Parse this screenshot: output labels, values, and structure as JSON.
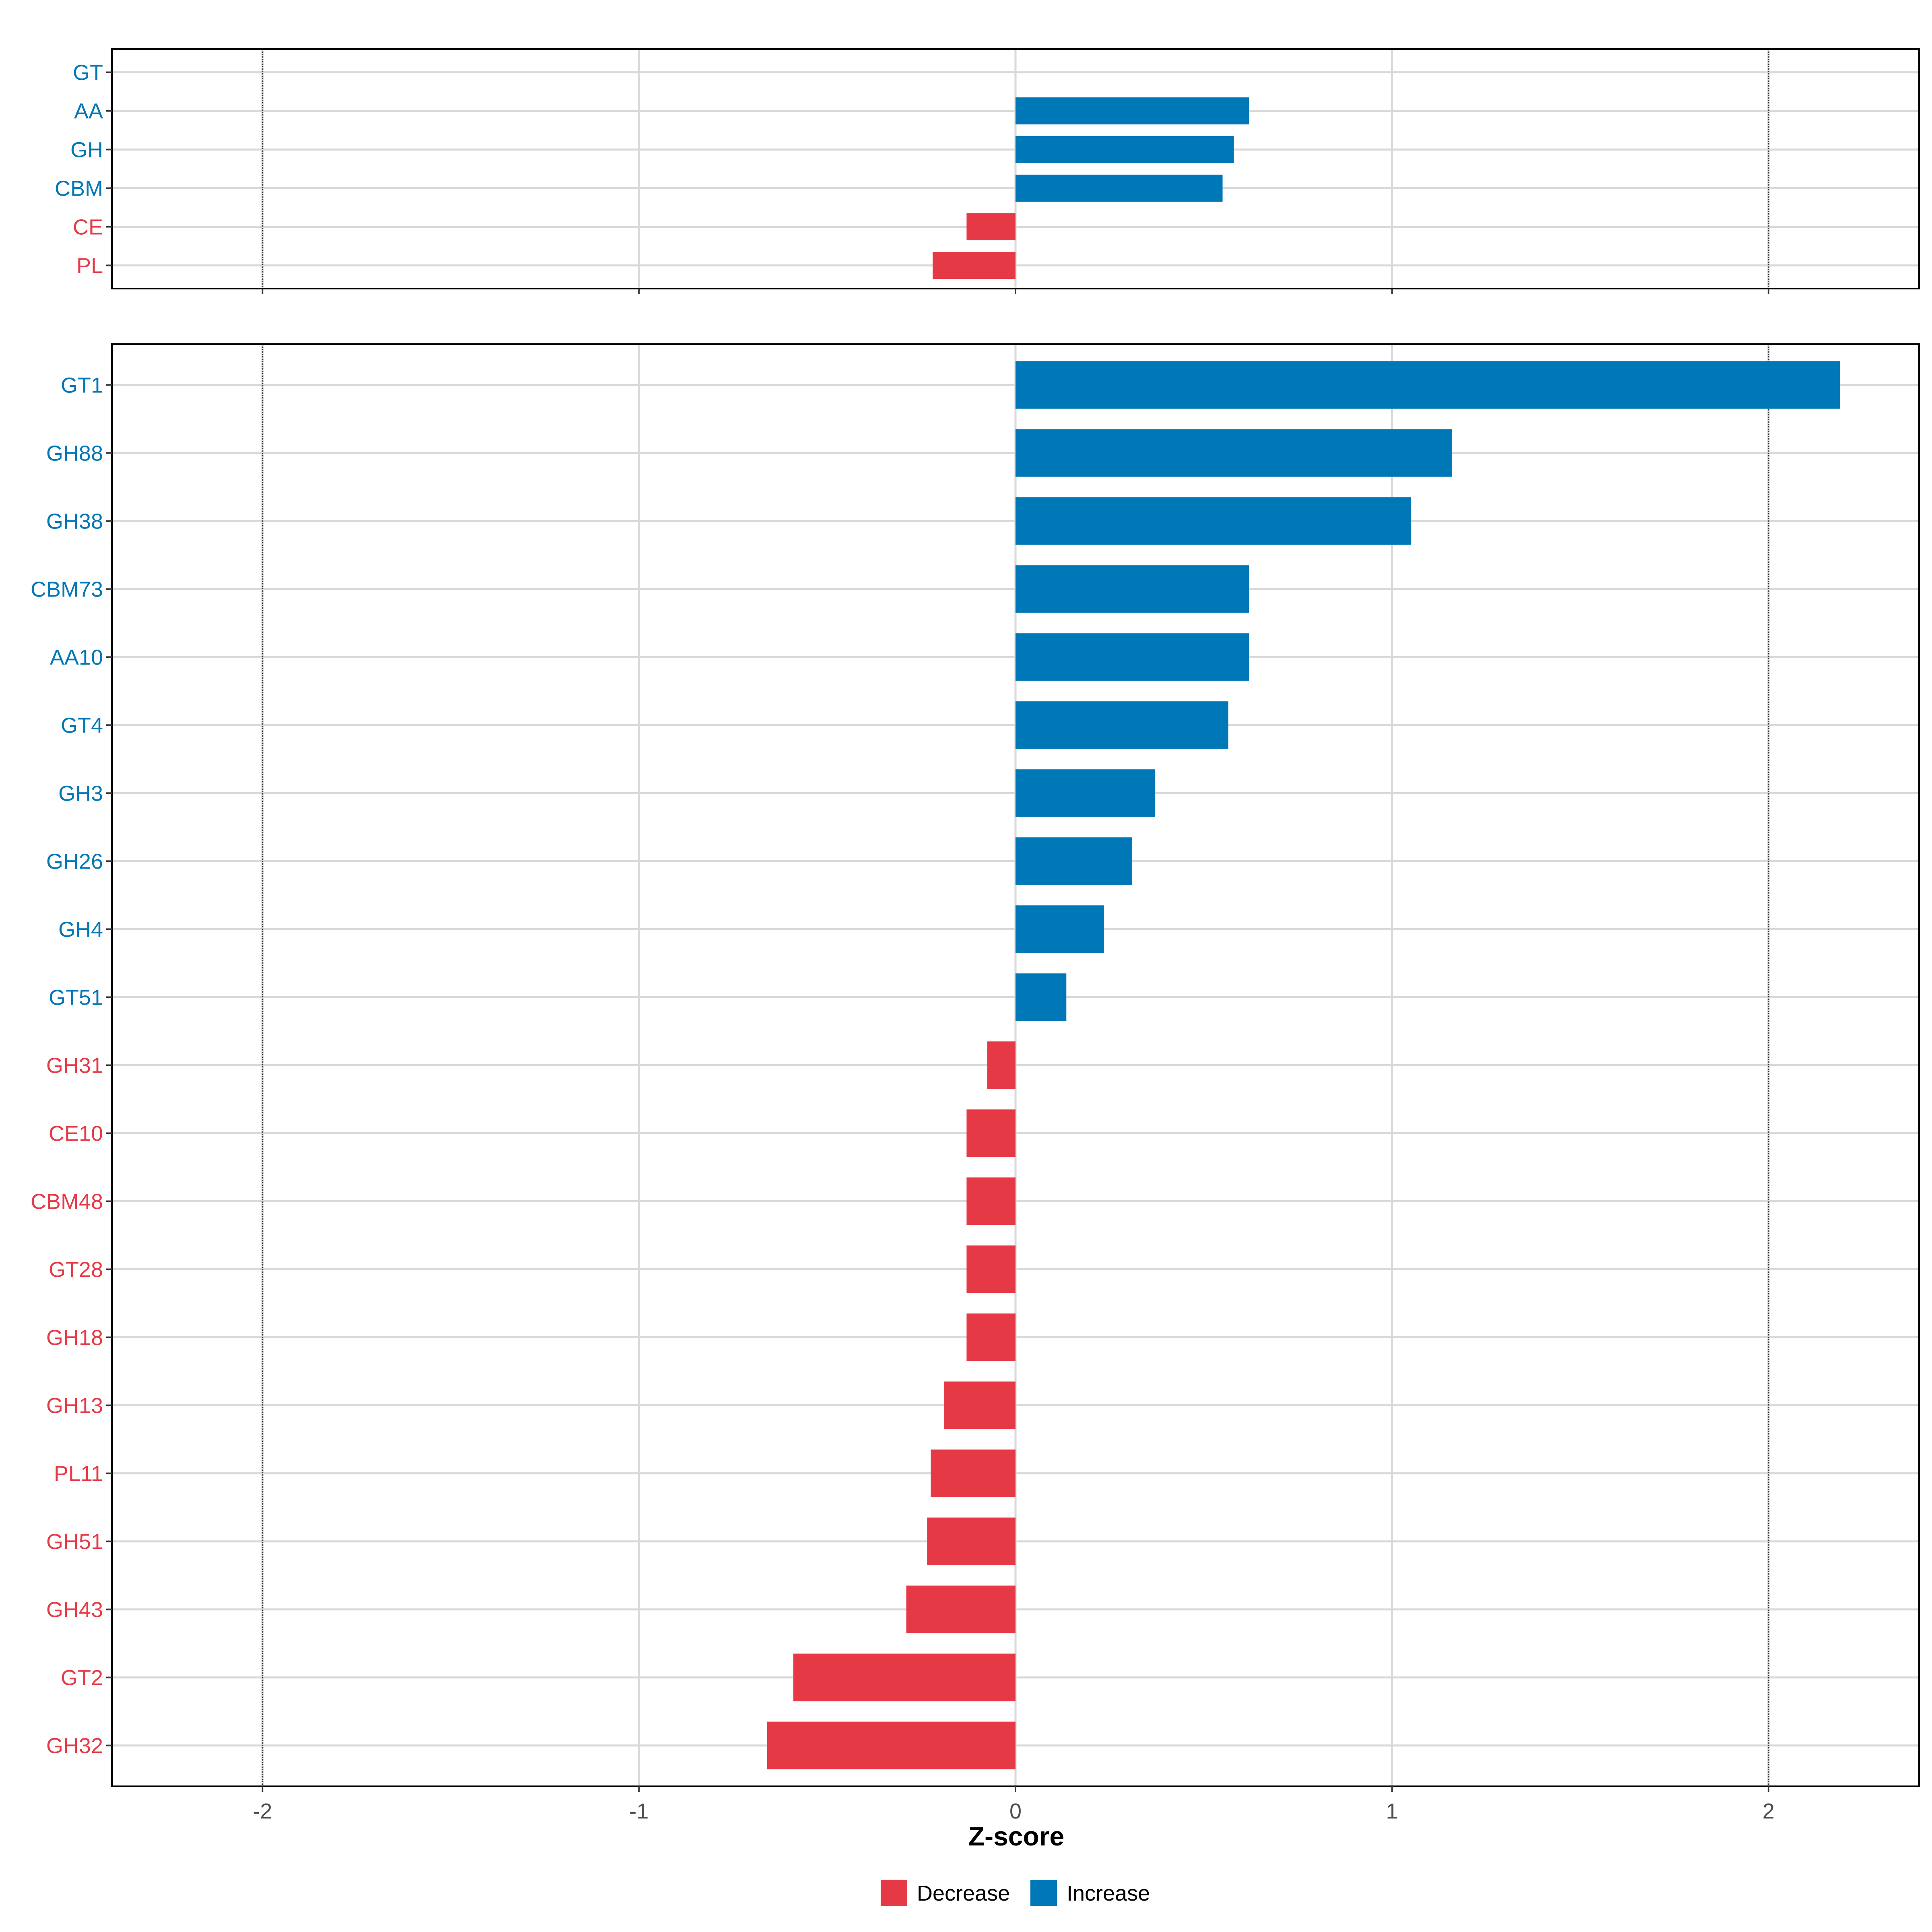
{
  "chart_data": [
    {
      "type": "bar",
      "orientation": "horizontal",
      "panel": "top",
      "categories": [
        "GT",
        "AA",
        "GH",
        "CBM",
        "CE",
        "PL"
      ],
      "values": [
        0,
        0.62,
        0.58,
        0.55,
        -0.13,
        -0.22
      ],
      "direction": [
        "Increase",
        "Increase",
        "Increase",
        "Increase",
        "Decrease",
        "Decrease"
      ],
      "xlim": [
        -2.4,
        2.4
      ],
      "reference_lines": [
        -2,
        2
      ]
    },
    {
      "type": "bar",
      "orientation": "horizontal",
      "panel": "bottom",
      "categories": [
        "GT1",
        "GH88",
        "GH38",
        "CBM73",
        "AA10",
        "GT4",
        "GH3",
        "GH26",
        "GH4",
        "GT51",
        "GH31",
        "CE10",
        "CBM48",
        "GT28",
        "GH18",
        "GH13",
        "PL11",
        "GH51",
        "GH43",
        "GT2",
        "GH32"
      ],
      "values": [
        2.19,
        1.16,
        1.05,
        0.62,
        0.62,
        0.565,
        0.37,
        0.31,
        0.235,
        0.135,
        -0.075,
        -0.13,
        -0.13,
        -0.13,
        -0.13,
        -0.19,
        -0.225,
        -0.235,
        -0.29,
        -0.59,
        -0.66
      ],
      "direction": [
        "Increase",
        "Increase",
        "Increase",
        "Increase",
        "Increase",
        "Increase",
        "Increase",
        "Increase",
        "Increase",
        "Increase",
        "Decrease",
        "Decrease",
        "Decrease",
        "Decrease",
        "Decrease",
        "Decrease",
        "Decrease",
        "Decrease",
        "Decrease",
        "Decrease",
        "Decrease"
      ],
      "xlim": [
        -2.4,
        2.4
      ],
      "xticks": [
        -2,
        -1,
        0,
        1,
        2
      ],
      "xtick_labels": [
        "-2",
        "-1",
        "0",
        "1",
        "2"
      ],
      "xlabel": "Z-score",
      "reference_lines": [
        -2,
        2
      ]
    }
  ],
  "legend": {
    "position": "bottom",
    "items": [
      {
        "label": "Decrease",
        "color": "#E63946"
      },
      {
        "label": "Increase",
        "color": "#0077B6"
      }
    ]
  },
  "colors": {
    "Decrease": "#E63946",
    "Increase": "#0077B6",
    "grid": "#d9d9d9",
    "reference_line": "#333333"
  }
}
